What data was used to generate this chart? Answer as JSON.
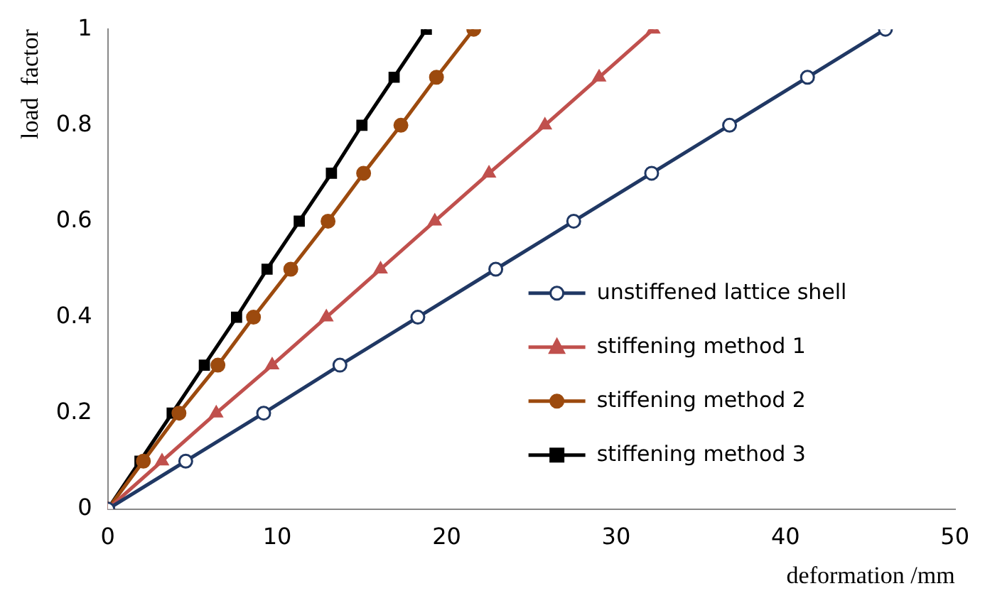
{
  "chart_data": {
    "type": "line",
    "xlabel": "deformation /mm",
    "ylabel": "load  factor",
    "xlim": [
      0,
      50
    ],
    "xticks": [
      0,
      10,
      20,
      30,
      40,
      50
    ],
    "ylim": [
      0,
      1
    ],
    "yticks": [
      0,
      0.2,
      0.4,
      0.6,
      0.8,
      1
    ],
    "grid": false,
    "legend": "right",
    "line_style": "solid",
    "series": [
      {
        "name": "unstiffened lattice shell",
        "color": "#203864",
        "marker": "circle",
        "x": [
          0,
          4.6,
          9.2,
          13.7,
          18.3,
          22.9,
          27.5,
          32.1,
          36.7,
          41.3,
          45.9
        ],
        "values": [
          0,
          0.1,
          0.2,
          0.3,
          0.4,
          0.5,
          0.6,
          0.7,
          0.8,
          0.9,
          1
        ]
      },
      {
        "name": "stiffening method 1",
        "color": "#c0504d",
        "marker": "triangle",
        "x": [
          0,
          3.2,
          6.4,
          9.7,
          12.9,
          16.1,
          19.3,
          22.5,
          25.8,
          29,
          32.2
        ],
        "values": [
          0,
          0.1,
          0.2,
          0.3,
          0.4,
          0.5,
          0.6,
          0.7,
          0.8,
          0.9,
          1
        ]
      },
      {
        "name": "stiffening method 2",
        "color": "#9c4a0e",
        "marker": "circle",
        "x": [
          0,
          2.1,
          4.2,
          6.5,
          8.6,
          10.8,
          13,
          15.1,
          17.3,
          19.4,
          21.6
        ],
        "values": [
          0,
          0.1,
          0.2,
          0.3,
          0.4,
          0.5,
          0.6,
          0.7,
          0.8,
          0.9,
          1
        ]
      },
      {
        "name": "stiffening method 3",
        "color": "#000000",
        "marker": "square",
        "x": [
          0,
          1.9,
          3.8,
          5.7,
          7.6,
          9.4,
          11.3,
          13.2,
          15,
          16.9,
          18.8
        ],
        "values": [
          0,
          0.1,
          0.2,
          0.3,
          0.4,
          0.5,
          0.6,
          0.7,
          0.8,
          0.9,
          1
        ]
      }
    ]
  }
}
